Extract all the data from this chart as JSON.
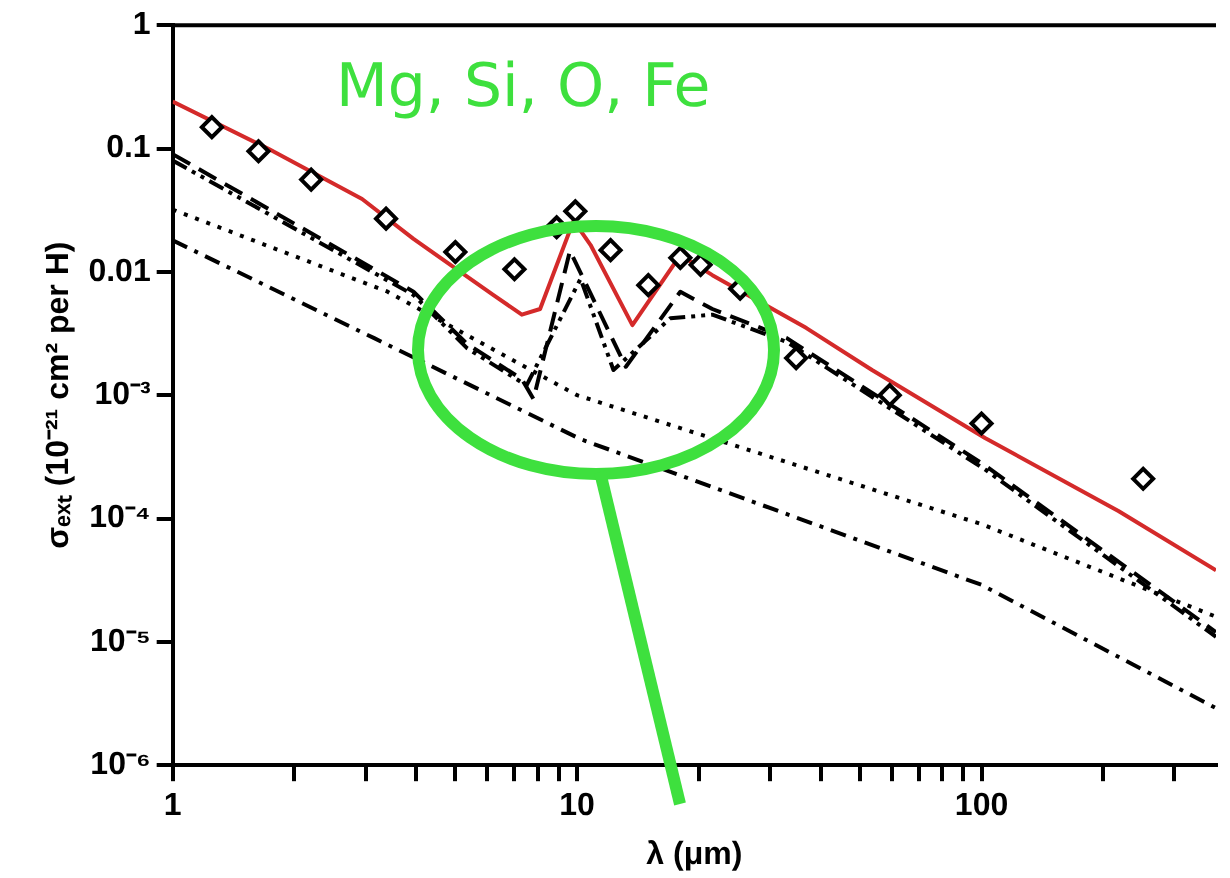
{
  "chart_data": {
    "type": "line",
    "xlabel": "λ (μm)",
    "ylabel": "σₑₓₜ (10⁻²¹ cm² per H)",
    "annotations": [
      "Mg, Si, O, Fe"
    ],
    "log": "xy",
    "grid": false,
    "legend": false,
    "xlim": [
      1,
      380
    ],
    "ylim": [
      1e-06,
      1
    ],
    "xticks": [
      1,
      {
        "value": 2,
        "label": null
      },
      {
        "value": 3,
        "label": null
      },
      {
        "value": 4,
        "label": null
      },
      {
        "value": 5,
        "label": null
      },
      {
        "value": 6,
        "label": null
      },
      {
        "value": 7,
        "label": null
      },
      {
        "value": 8,
        "label": null
      },
      {
        "value": 9,
        "label": null
      },
      10,
      {
        "value": 20,
        "label": null
      },
      {
        "value": 30,
        "label": null
      },
      {
        "value": 40,
        "label": null
      },
      {
        "value": 50,
        "label": null
      },
      {
        "value": 60,
        "label": null
      },
      {
        "value": 70,
        "label": null
      },
      {
        "value": 80,
        "label": null
      },
      {
        "value": 90,
        "label": null
      },
      100,
      {
        "value": 200,
        "label": null
      },
      {
        "value": 300,
        "label": null
      }
    ],
    "yticks": [
      {
        "value": 1e-06,
        "label": "10⁻⁶"
      },
      {
        "value": 1e-05,
        "label": "10⁻⁵"
      },
      {
        "value": 0.0001,
        "label": "10⁻⁴"
      },
      {
        "value": 0.001,
        "label": "10⁻³"
      },
      0.01,
      0.1,
      1
    ],
    "series": [
      {
        "color": "#d42a2a",
        "line_style": "solid",
        "marker": "none",
        "x": [
          1,
          1.72,
          2.94,
          3.94,
          6.2,
          7.3,
          8.1,
          9.8,
          10.8,
          13.7,
          18,
          21.6,
          36.9,
          53.6,
          102,
          218,
          380
        ],
        "values": [
          0.24,
          0.1,
          0.039,
          0.0185,
          0.0065,
          0.0045,
          0.005,
          0.026,
          0.0165,
          0.0037,
          0.0137,
          0.0094,
          0.0035,
          0.0016,
          0.00045,
          0.000115,
          3.8e-05
        ]
      },
      {
        "color": "#000000",
        "line_style": "dashed",
        "marker": "none",
        "x": [
          1,
          3.94,
          5.35,
          7.3,
          7.8,
          9.6,
          13.2,
          18,
          21.6,
          33,
          102,
          380
        ],
        "values": [
          0.09,
          0.0069,
          0.0026,
          0.00135,
          0.00093,
          0.0148,
          0.0017,
          0.0069,
          0.005,
          0.0029,
          0.00027,
          1.2e-05
        ]
      },
      {
        "color": "#000000",
        "line_style": "dashdotdot",
        "marker": "none",
        "x": [
          1,
          3.94,
          5.35,
          7.5,
          10.2,
          12.3,
          17,
          21.6,
          33,
          102,
          380
        ],
        "values": [
          0.08,
          0.0065,
          0.0024,
          0.0012,
          0.0088,
          0.0016,
          0.0042,
          0.0045,
          0.0027,
          0.00025,
          1.1e-05
        ]
      },
      {
        "color": "#000000",
        "line_style": "dotted",
        "marker": "none",
        "x": [
          1,
          3.4,
          10,
          100,
          380
        ],
        "values": [
          0.032,
          0.0069,
          0.001,
          9e-05,
          1.6e-05
        ]
      },
      {
        "color": "#000000",
        "line_style": "dashdot",
        "marker": "none",
        "x": [
          1,
          3.15,
          10.2,
          100,
          380
        ],
        "values": [
          0.018,
          0.0029,
          0.00044,
          2.9e-05,
          2.9e-06
        ]
      },
      {
        "type": "scatter",
        "color": "#000000",
        "marker": "diamond",
        "x": [
          1.25,
          1.63,
          2.2,
          3.37,
          5.0,
          7.0,
          8.9,
          9.9,
          12.1,
          15.0,
          18.0,
          20.2,
          25.3,
          34.8,
          59.3,
          100,
          251
        ],
        "values": [
          0.149,
          0.095,
          0.056,
          0.027,
          0.0145,
          0.0105,
          0.023,
          0.031,
          0.015,
          0.0078,
          0.013,
          0.0114,
          0.0073,
          0.002,
          0.001,
          0.00059,
          0.00021
        ]
      }
    ]
  }
}
